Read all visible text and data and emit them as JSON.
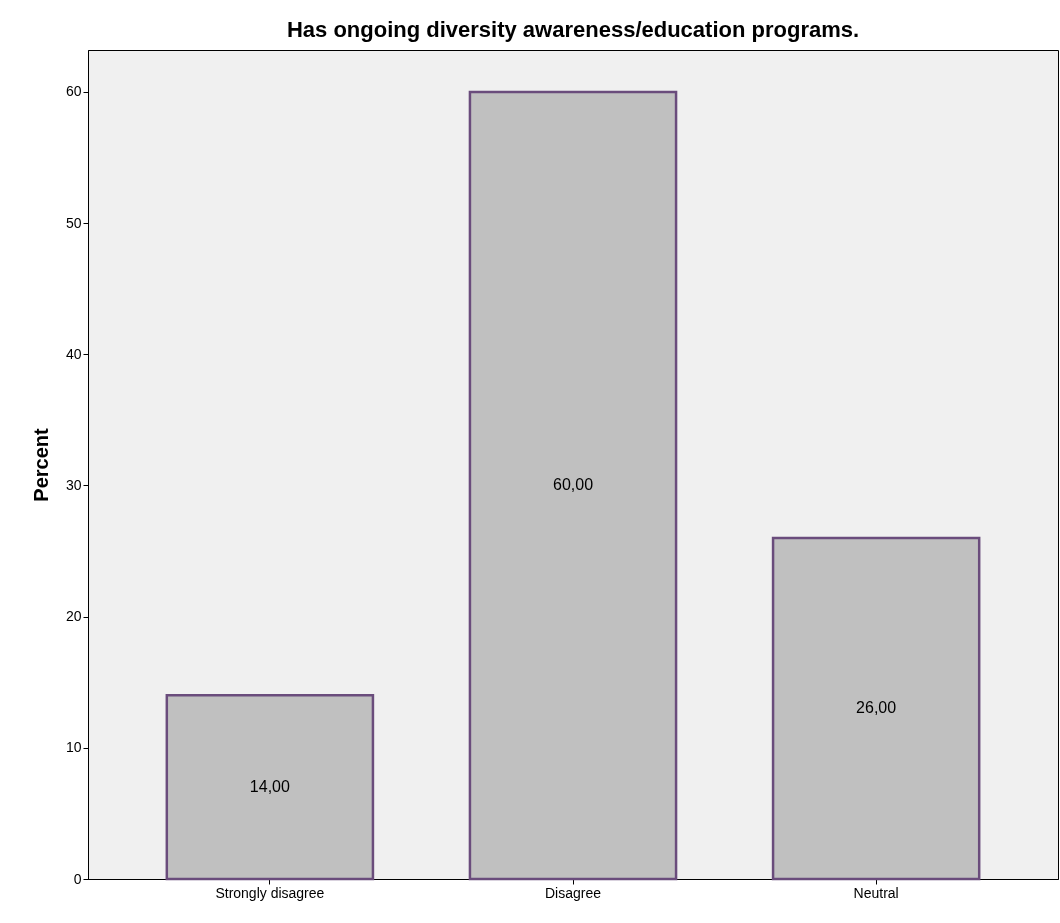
{
  "chart_data": {
    "type": "bar",
    "title": "Has ongoing diversity awareness/education programs.",
    "ylabel": "Percent",
    "categories": [
      "Strongly disagree",
      "Disagree",
      "Neutral"
    ],
    "values": [
      14,
      60,
      26
    ],
    "value_labels": [
      "14,00",
      "60,00",
      "26,00"
    ],
    "color": "#c0c0c0",
    "ylim": [
      0,
      63.2
    ],
    "yticks": [
      0,
      10,
      20,
      30,
      40,
      50,
      60
    ],
    "grid": false
  }
}
